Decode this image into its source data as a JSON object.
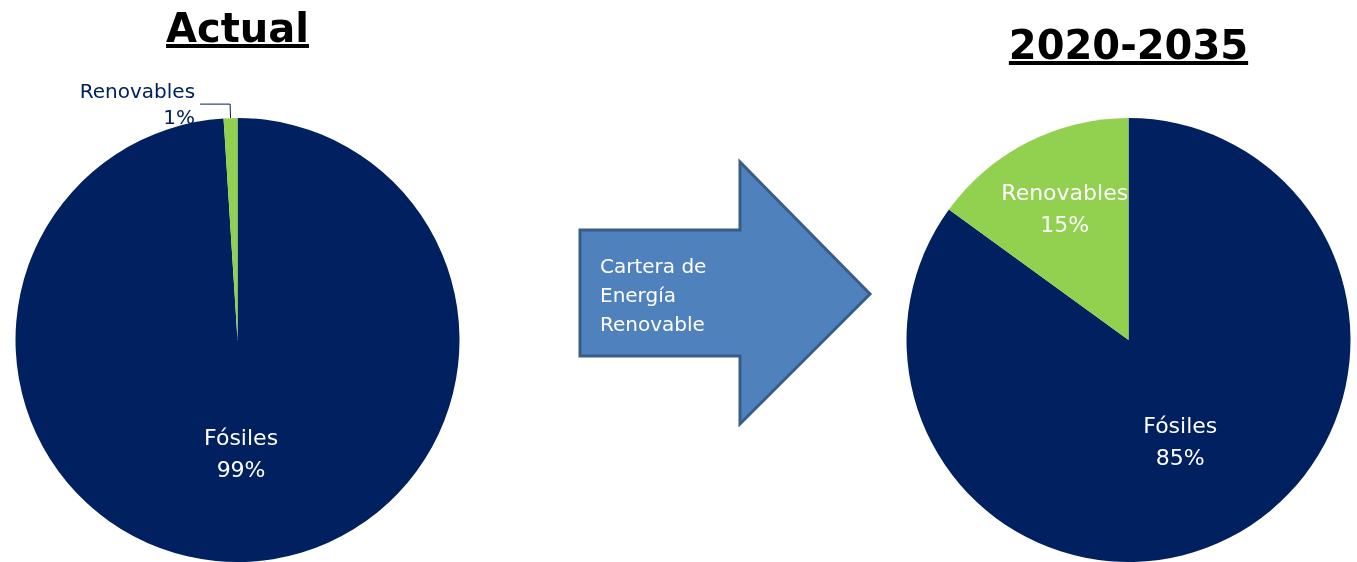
{
  "chart_data": [
    {
      "type": "pie",
      "title": "Actual",
      "categories": [
        "Fósiles",
        "Renovables"
      ],
      "values": [
        99,
        1
      ],
      "colors": [
        "#002060",
        "#92d050"
      ],
      "value_labels": [
        "99%",
        "1%"
      ]
    },
    {
      "type": "other",
      "annotations": [
        "Cartera de Energía Renovable"
      ]
    },
    {
      "type": "pie",
      "title": "2020-2035",
      "categories": [
        "Fósiles",
        "Renovables"
      ],
      "values": [
        85,
        15
      ],
      "colors": [
        "#002060",
        "#92d050"
      ],
      "value_labels": [
        "85%",
        "15%"
      ]
    }
  ]
}
